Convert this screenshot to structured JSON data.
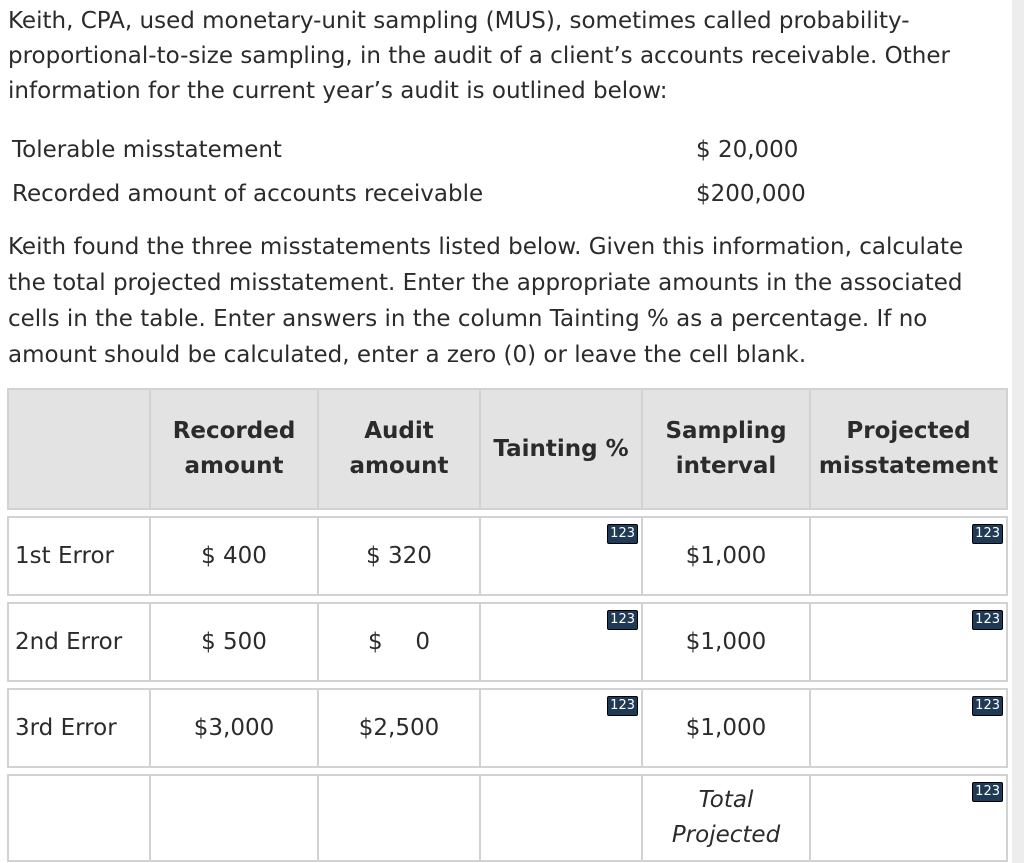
{
  "intro_text": "Keith, CPA, used monetary-unit sampling (MUS), sometimes called probability-proportional-to-size sampling, in the audit of a client’s accounts receivable. Other information for the current year’s audit is outlined below:",
  "info": [
    {
      "label": "Tolerable misstatement",
      "value": "$ 20,000"
    },
    {
      "label": "Recorded amount of accounts receivable",
      "value": "$200,000"
    }
  ],
  "instructions": "Keith found the three misstatements listed below. Given this information, calculate the total projected misstatement. Enter the appropriate amounts in the associated cells in the table. Enter answers in the column Tainting % as a percentage. If no amount should be calculated, enter a zero (0) or leave the cell blank.",
  "table": {
    "headers": [
      {
        "line1": "",
        "line2": ""
      },
      {
        "line1": "Recorded",
        "line2": "amount"
      },
      {
        "line1": "Audit",
        "line2": "amount"
      },
      {
        "line1": "Tainting %",
        "line2": ""
      },
      {
        "line1": "Sampling",
        "line2": "interval"
      },
      {
        "line1": "Projected",
        "line2": "misstatement"
      }
    ],
    "rows": [
      {
        "label": "1st Error",
        "recorded": "$ 400",
        "audit": "$ 320",
        "tainting": "",
        "interval": "$1,000",
        "projected": ""
      },
      {
        "label": "2nd Error",
        "recorded": "$ 500",
        "audit_dollar": "$",
        "audit_value": "0",
        "tainting": "",
        "interval": "$1,000",
        "projected": ""
      },
      {
        "label": "3rd Error",
        "recorded": "$3,000",
        "audit": "$2,500",
        "tainting": "",
        "interval": "$1,000",
        "projected": ""
      }
    ],
    "total_label_line1": "Total",
    "total_label_line2": "Projected",
    "total_value": "",
    "input_badge": "123"
  }
}
